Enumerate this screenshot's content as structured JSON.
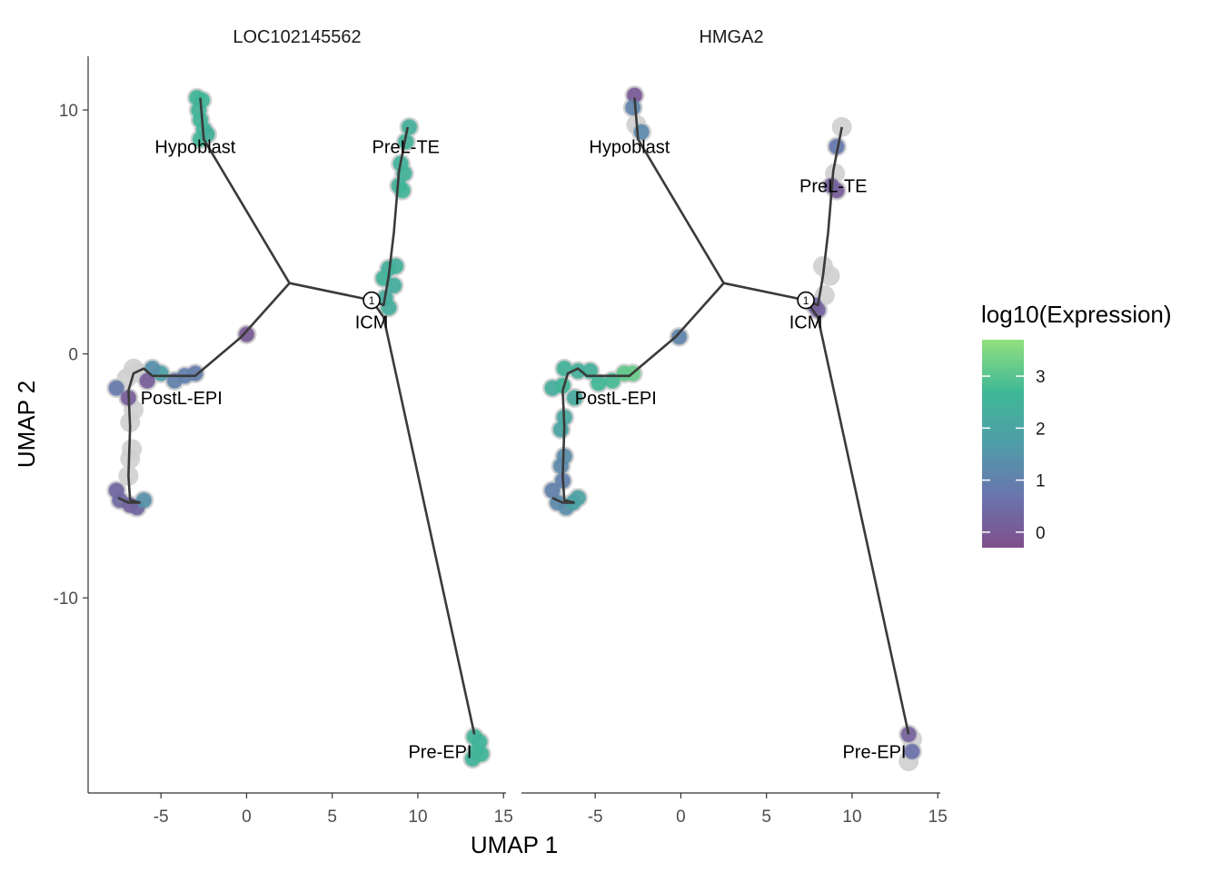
{
  "chart_data": {
    "type": "scatter",
    "xlabel": "UMAP 1",
    "ylabel": "UMAP 2",
    "xlim": [
      -9.2,
      15.2
    ],
    "ylim": [
      -18,
      12.2
    ],
    "x_ticks": [
      -5,
      0,
      5,
      10,
      15
    ],
    "x_tick_labels": [
      "-5",
      "0",
      "5",
      "10",
      "15"
    ],
    "y_ticks": [
      10,
      0,
      -10
    ],
    "y_tick_labels": [
      "10",
      "0",
      "-10"
    ],
    "grid": false,
    "legend": {
      "title": "log10(Expression)",
      "placement": "right",
      "range": [
        -0.3,
        3.7
      ],
      "ticks": [
        0,
        1,
        2,
        3
      ],
      "tick_labels": [
        "0",
        "1",
        "2",
        "3"
      ],
      "colors": [
        "#7f4f8c",
        "#6a75ad",
        "#4f9da8",
        "#3fb896",
        "#92e07e"
      ]
    },
    "trajectory": {
      "node_label": "1",
      "edges": [
        [
          [
            -2.7,
            10.5
          ],
          [
            -2.5,
            8.8
          ],
          [
            2.5,
            2.9
          ]
        ],
        [
          [
            2.5,
            2.9
          ],
          [
            7.3,
            2.2
          ]
        ],
        [
          [
            2.5,
            2.9
          ],
          [
            -0.3,
            0.7
          ],
          [
            -3.0,
            -0.9
          ],
          [
            -5.5,
            -0.9
          ],
          [
            -6.0,
            -0.6
          ],
          [
            -6.6,
            -0.8
          ],
          [
            -6.9,
            -1.5
          ],
          [
            -6.8,
            -3.0
          ],
          [
            -6.9,
            -5.0
          ],
          [
            -6.8,
            -6.0
          ],
          [
            -6.2,
            -6.1
          ]
        ],
        [
          [
            -7.5,
            -5.9
          ],
          [
            -6.9,
            -6.1
          ],
          [
            -6.2,
            -6.1
          ]
        ],
        [
          [
            7.3,
            2.2
          ],
          [
            8.0,
            2.0
          ],
          [
            8.3,
            3.2
          ],
          [
            8.6,
            5.0
          ],
          [
            8.9,
            7.5
          ],
          [
            9.4,
            9.3
          ]
        ],
        [
          [
            7.3,
            2.2
          ],
          [
            8.0,
            1.5
          ],
          [
            13.3,
            -15.6
          ]
        ]
      ]
    },
    "branch_labels": [
      {
        "text": "Hypoblast",
        "x": -3.0,
        "y": 8.5
      },
      {
        "text": "PreL-TE",
        "x": 9.3,
        "y": 8.5
      },
      {
        "text": "ICM",
        "x": 7.3,
        "y": 1.3
      },
      {
        "text": "PostL-EPI",
        "x": -3.8,
        "y": -1.8
      },
      {
        "text": "Pre-EPI",
        "x": 11.3,
        "y": -16.3
      }
    ],
    "panels": [
      {
        "title": "LOC102145562",
        "label_overrides": {},
        "points": [
          {
            "x": -2.9,
            "y": 10.5,
            "v": 2.6
          },
          {
            "x": -2.6,
            "y": 10.4,
            "v": 2.6
          },
          {
            "x": -2.8,
            "y": 10.0,
            "v": 2.5
          },
          {
            "x": -2.7,
            "y": 9.6,
            "v": 2.6
          },
          {
            "x": -2.5,
            "y": 9.2,
            "v": 2.5
          },
          {
            "x": -2.7,
            "y": 8.8,
            "v": 2.6
          },
          {
            "x": -2.3,
            "y": 9.0,
            "v": 2.4
          },
          {
            "x": 9.5,
            "y": 9.3,
            "v": 2.4
          },
          {
            "x": 9.3,
            "y": 8.7,
            "v": 2.5
          },
          {
            "x": 9.0,
            "y": 7.8,
            "v": 2.5
          },
          {
            "x": 9.2,
            "y": 7.4,
            "v": 2.5
          },
          {
            "x": 8.9,
            "y": 6.9,
            "v": 2.4
          },
          {
            "x": 9.1,
            "y": 6.7,
            "v": 2.6
          },
          {
            "x": 8.3,
            "y": 3.5,
            "v": 2.3
          },
          {
            "x": 8.7,
            "y": 3.6,
            "v": 2.4
          },
          {
            "x": 8.0,
            "y": 3.1,
            "v": 2.5
          },
          {
            "x": 8.6,
            "y": 2.8,
            "v": 2.3
          },
          {
            "x": 8.1,
            "y": 2.3,
            "v": 2.2
          },
          {
            "x": 8.3,
            "y": 1.9,
            "v": 2.3
          },
          {
            "x": 0.0,
            "y": 0.8,
            "v": 0.0
          },
          {
            "x": -3.0,
            "y": -0.8,
            "v": 0.9
          },
          {
            "x": -3.6,
            "y": -0.9,
            "v": 1.0
          },
          {
            "x": -4.2,
            "y": -1.1,
            "v": 1.0
          },
          {
            "x": -5.0,
            "y": -0.8,
            "v": 1.8
          },
          {
            "x": -5.5,
            "y": -0.6,
            "v": 1.4
          },
          {
            "x": -6.2,
            "y": -0.8,
            "v": null
          },
          {
            "x": -6.6,
            "y": -0.6,
            "v": null
          },
          {
            "x": -5.8,
            "y": -1.1,
            "v": 0.1
          },
          {
            "x": -7.6,
            "y": -1.4,
            "v": 0.8
          },
          {
            "x": -7.0,
            "y": -1.0,
            "v": null
          },
          {
            "x": -6.9,
            "y": -1.8,
            "v": 0.1
          },
          {
            "x": -6.6,
            "y": -2.3,
            "v": null
          },
          {
            "x": -6.8,
            "y": -2.8,
            "v": null
          },
          {
            "x": -6.7,
            "y": -3.9,
            "v": null
          },
          {
            "x": -6.8,
            "y": -4.3,
            "v": null
          },
          {
            "x": -6.9,
            "y": -5.0,
            "v": null
          },
          {
            "x": -7.6,
            "y": -5.6,
            "v": 0.3
          },
          {
            "x": -7.4,
            "y": -6.0,
            "v": 0.4
          },
          {
            "x": -6.8,
            "y": -6.2,
            "v": 0.2
          },
          {
            "x": -6.4,
            "y": -6.3,
            "v": 0.3
          },
          {
            "x": -6.0,
            "y": -6.0,
            "v": 1.4
          },
          {
            "x": 13.3,
            "y": -15.7,
            "v": 2.6
          },
          {
            "x": 13.6,
            "y": -15.9,
            "v": 2.5
          },
          {
            "x": 13.4,
            "y": -16.3,
            "v": 2.6
          },
          {
            "x": 13.2,
            "y": -16.6,
            "v": 2.5
          },
          {
            "x": 13.7,
            "y": -16.4,
            "v": 2.6
          }
        ]
      },
      {
        "title": "HMGA2",
        "label_overrides": {
          "PreL-TE": {
            "x": 8.9,
            "y": 6.9
          }
        },
        "points": [
          {
            "x": -2.7,
            "y": 10.6,
            "v": 0.0
          },
          {
            "x": -2.8,
            "y": 10.1,
            "v": 1.1
          },
          {
            "x": -2.3,
            "y": 9.1,
            "v": 1.2
          },
          {
            "x": -2.6,
            "y": 9.4,
            "v": null
          },
          {
            "x": 9.4,
            "y": 9.3,
            "v": null
          },
          {
            "x": 9.1,
            "y": 8.5,
            "v": 0.8
          },
          {
            "x": 9.0,
            "y": 7.4,
            "v": null
          },
          {
            "x": 9.1,
            "y": 6.7,
            "v": 0.1
          },
          {
            "x": 8.8,
            "y": 6.9,
            "v": 0.2
          },
          {
            "x": 8.3,
            "y": 3.6,
            "v": null
          },
          {
            "x": 8.7,
            "y": 3.2,
            "v": null
          },
          {
            "x": 8.4,
            "y": 2.4,
            "v": null
          },
          {
            "x": 7.8,
            "y": 2.0,
            "v": 0.4
          },
          {
            "x": 8.0,
            "y": 1.8,
            "v": 0.2
          },
          {
            "x": -0.1,
            "y": 0.7,
            "v": 1.1
          },
          {
            "x": -2.8,
            "y": -0.8,
            "v": 3.2
          },
          {
            "x": -3.3,
            "y": -0.8,
            "v": 3.1
          },
          {
            "x": -4.0,
            "y": -1.1,
            "v": 2.8
          },
          {
            "x": -4.8,
            "y": -1.2,
            "v": 2.7
          },
          {
            "x": -5.3,
            "y": -0.7,
            "v": 2.4
          },
          {
            "x": -6.0,
            "y": -0.7,
            "v": 2.4
          },
          {
            "x": -6.8,
            "y": -0.6,
            "v": 2.5
          },
          {
            "x": -7.5,
            "y": -1.4,
            "v": 2.3
          },
          {
            "x": -6.9,
            "y": -1.3,
            "v": 2.6
          },
          {
            "x": -6.2,
            "y": -1.8,
            "v": 2.2
          },
          {
            "x": -6.8,
            "y": -2.6,
            "v": 2.1
          },
          {
            "x": -7.0,
            "y": -3.1,
            "v": 2.0
          },
          {
            "x": -6.8,
            "y": -4.2,
            "v": 1.3
          },
          {
            "x": -7.0,
            "y": -4.6,
            "v": 1.2
          },
          {
            "x": -6.9,
            "y": -5.2,
            "v": 1.0
          },
          {
            "x": -7.5,
            "y": -5.6,
            "v": 1.0
          },
          {
            "x": -7.2,
            "y": -6.1,
            "v": 1.2
          },
          {
            "x": -6.7,
            "y": -6.3,
            "v": 1.3
          },
          {
            "x": -6.3,
            "y": -6.1,
            "v": 1.8
          },
          {
            "x": -6.0,
            "y": -5.9,
            "v": 1.9
          },
          {
            "x": 13.3,
            "y": -15.6,
            "v": 0.2
          },
          {
            "x": 13.5,
            "y": -15.8,
            "v": null
          },
          {
            "x": 13.5,
            "y": -16.3,
            "v": 0.6
          },
          {
            "x": 13.3,
            "y": -16.7,
            "v": null
          }
        ]
      }
    ]
  }
}
